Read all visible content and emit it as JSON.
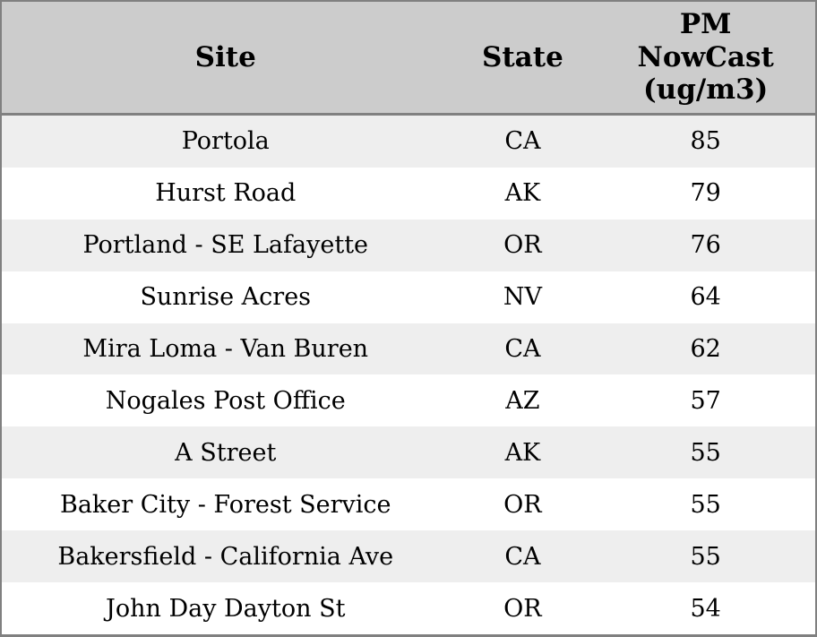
{
  "chart_data": {
    "type": "table",
    "title": "",
    "columns": [
      "Site",
      "State",
      "PM NowCast (ug/m3)"
    ],
    "column_header_lines": [
      [
        "Site"
      ],
      [
        "State"
      ],
      [
        "PM",
        "NowCast",
        "(ug/m3)"
      ]
    ],
    "rows": [
      {
        "site": "Portola",
        "state": "CA",
        "pm_nowcast": 85
      },
      {
        "site": "Hurst Road",
        "state": "AK",
        "pm_nowcast": 79
      },
      {
        "site": "Portland - SE Lafayette",
        "state": "OR",
        "pm_nowcast": 76
      },
      {
        "site": "Sunrise Acres",
        "state": "NV",
        "pm_nowcast": 64
      },
      {
        "site": "Mira Loma - Van Buren",
        "state": "CA",
        "pm_nowcast": 62
      },
      {
        "site": "Nogales Post Office",
        "state": "AZ",
        "pm_nowcast": 57
      },
      {
        "site": "A Street",
        "state": "AK",
        "pm_nowcast": 55
      },
      {
        "site": "Baker City - Forest Service",
        "state": "OR",
        "pm_nowcast": 55
      },
      {
        "site": "Bakersfield - California Ave",
        "state": "CA",
        "pm_nowcast": 55
      },
      {
        "site": "John Day Dayton St",
        "state": "OR",
        "pm_nowcast": 54
      }
    ],
    "layout": {
      "striped_rows": true,
      "header_position": "top",
      "cell_alignment": "center"
    }
  },
  "style": {
    "header_bg": "#cccccc",
    "row_stripe_bg": "#eeeeee",
    "row_bg": "#ffffff",
    "border_color": "#808080",
    "text_color": "#000000"
  }
}
